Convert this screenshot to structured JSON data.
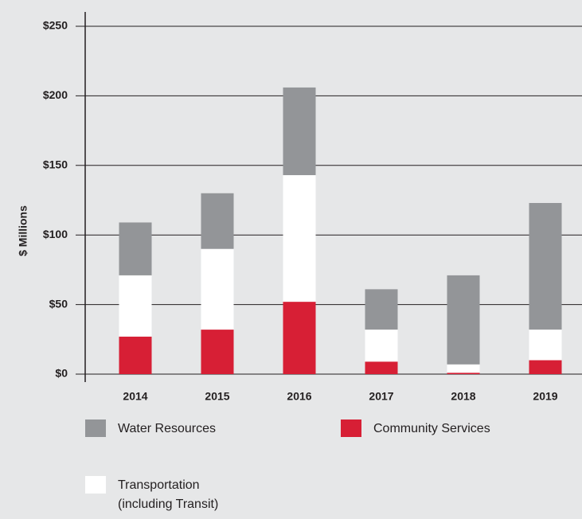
{
  "chart_data": {
    "type": "stacked_bar",
    "y_label": "$ Millions",
    "categories": [
      "2014",
      "2015",
      "2016",
      "2017",
      "2018",
      "2019"
    ],
    "series": [
      {
        "name": "Community Services",
        "color": "#d71f35",
        "values": [
          27,
          32,
          52,
          9,
          1,
          10
        ]
      },
      {
        "name": "Transportation (including Transit)",
        "color": "#ffffff",
        "values": [
          44,
          58,
          91,
          23,
          6,
          22
        ]
      },
      {
        "name": "Water Resources",
        "color": "#939598",
        "values": [
          38,
          40,
          63,
          29,
          64,
          91
        ]
      }
    ],
    "ylim": [
      0,
      250
    ],
    "yticks": [
      {
        "value": 0,
        "label": "$0"
      },
      {
        "value": 50,
        "label": "$50"
      },
      {
        "value": 100,
        "label": "$100"
      },
      {
        "value": 150,
        "label": "$150"
      },
      {
        "value": 200,
        "label": "$200"
      },
      {
        "value": 250,
        "label": "$250"
      }
    ],
    "grid": true
  }
}
